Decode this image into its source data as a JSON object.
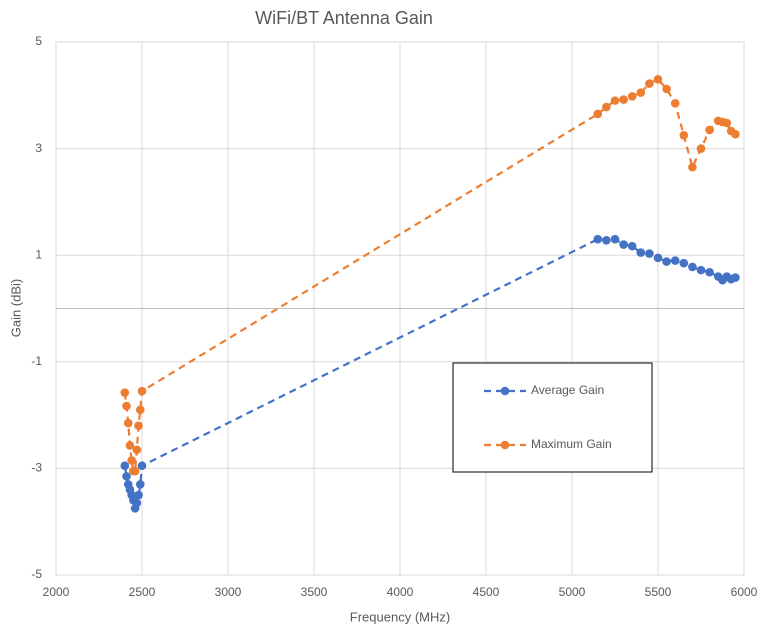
{
  "chart_data": {
    "type": "line",
    "title": "WiFi/BT Antenna Gain",
    "x_label": "Frequency (MHz)",
    "y_label": "Gain (dBi)",
    "x": [
      2400,
      2410,
      2420,
      2430,
      2440,
      2450,
      2460,
      2470,
      2480,
      2490,
      2500,
      5150,
      5200,
      5250,
      5300,
      5350,
      5400,
      5450,
      5500,
      5550,
      5600,
      5650,
      5700,
      5750,
      5800,
      5850,
      5875,
      5900,
      5925,
      5950
    ],
    "series": [
      {
        "name": "Average Gain",
        "color": "#4472c4",
        "values": [
          -2.95,
          -3.15,
          -3.3,
          -3.4,
          -3.5,
          -3.6,
          -3.75,
          -3.65,
          -3.5,
          -3.3,
          -2.95,
          1.3,
          1.28,
          1.3,
          1.2,
          1.17,
          1.05,
          1.03,
          0.95,
          0.88,
          0.9,
          0.85,
          0.78,
          0.72,
          0.68,
          0.6,
          0.53,
          0.6,
          0.55,
          0.58
        ]
      },
      {
        "name": "Maximum Gain",
        "color": "#ed7d31",
        "values": [
          -1.58,
          -1.83,
          -2.15,
          -2.57,
          -2.85,
          -3.05,
          -3.05,
          -2.65,
          -2.2,
          -1.9,
          -1.55,
          3.65,
          3.78,
          3.9,
          3.92,
          3.98,
          4.05,
          4.22,
          4.3,
          4.12,
          3.85,
          3.25,
          2.65,
          3.0,
          3.35,
          3.52,
          3.5,
          3.48,
          3.33,
          3.27
        ]
      }
    ],
    "xlim": [
      2000,
      6000
    ],
    "xticks": [
      2000,
      2500,
      3000,
      3500,
      4000,
      4500,
      5000,
      5500,
      6000
    ],
    "ylim": [
      -5,
      5
    ],
    "yticks": [
      -5,
      -3,
      -1,
      1,
      3,
      5
    ],
    "grid": true,
    "legend_position": "center-right"
  }
}
